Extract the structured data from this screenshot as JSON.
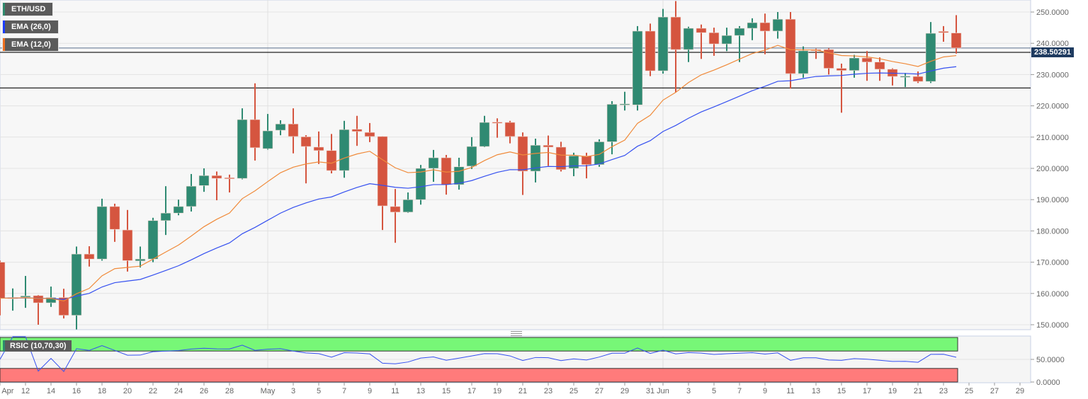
{
  "legend": {
    "symbol": "ETH/USD",
    "ema_slow": "EMA (26,0)",
    "ema_fast": "EMA (12,0)",
    "rsi": "RSIC (10,70,30)"
  },
  "colors": {
    "up": "#2f8a72",
    "down": "#d5553f",
    "ema_slow": "#3550f0",
    "ema_fast": "#f08a3a",
    "rsi_line": "#3550f0",
    "overbought_band": "#77f777",
    "oversold_band": "#ff7b7b",
    "price_tag": "#1f3b60"
  },
  "last_price_label": "238.50291",
  "chart_data": {
    "type": "candlestick",
    "candle_fields": [
      "date",
      "open",
      "high",
      "low",
      "close"
    ],
    "candles": [
      [
        "Apr 10",
        170,
        170.5,
        153,
        158.5
      ],
      [
        "Apr 11",
        158.3,
        161.6,
        154.5,
        158.7
      ],
      [
        "Apr 12",
        158.8,
        165.6,
        155.4,
        159.2
      ],
      [
        "Apr 13",
        159.3,
        159.5,
        150,
        157
      ],
      [
        "Apr 14",
        157,
        162.2,
        155.7,
        158.7
      ],
      [
        "Apr 15",
        158.7,
        161.5,
        152,
        153
      ],
      [
        "Apr 16",
        153,
        175,
        148.5,
        172.6
      ],
      [
        "Apr 17",
        172.6,
        175.1,
        168.6,
        171
      ],
      [
        "Apr 18",
        171,
        190.3,
        170.5,
        187.8
      ],
      [
        "Apr 19",
        187.8,
        188.7,
        176.5,
        180.5
      ],
      [
        "Apr 20",
        180.3,
        186.7,
        167,
        170.5
      ],
      [
        "Apr 21",
        170.4,
        175,
        168.3,
        171
      ],
      [
        "Apr 22",
        171,
        184.2,
        170,
        183.3
      ],
      [
        "Apr 23",
        183.3,
        194.3,
        178.7,
        185.7
      ],
      [
        "Apr 24",
        185.7,
        190,
        185,
        187.8
      ],
      [
        "Apr 25",
        187.8,
        198.2,
        186.2,
        194.3
      ],
      [
        "Apr 26",
        194.5,
        200,
        192.5,
        197.7
      ],
      [
        "Apr 27",
        197.7,
        199,
        189.8,
        196.8
      ],
      [
        "Apr 28",
        197,
        198,
        192.3,
        196.7
      ],
      [
        "Apr 29",
        196.8,
        219.2,
        196.5,
        215.6
      ],
      [
        "Apr 30",
        215.6,
        227.2,
        202.5,
        206.6
      ],
      [
        "May 1",
        206.3,
        217.4,
        206,
        212
      ],
      [
        "May 2",
        212.2,
        215.4,
        210.6,
        214.2
      ],
      [
        "May 3",
        214.2,
        219.2,
        204.8,
        210.2
      ],
      [
        "May 4",
        210.1,
        210.6,
        195.2,
        207
      ],
      [
        "May 5",
        206.8,
        211.8,
        201.4,
        205.7
      ],
      [
        "May 6",
        205.7,
        211,
        198.4,
        199.3
      ],
      [
        "May 7",
        199.3,
        215.2,
        197,
        212.4
      ],
      [
        "May 8",
        212.5,
        216.8,
        207.2,
        211.8
      ],
      [
        "May 9",
        211.5,
        214.5,
        208.4,
        210.2
      ],
      [
        "May 10",
        210.2,
        210.3,
        180.3,
        188
      ],
      [
        "May 11",
        187.8,
        193.4,
        176.2,
        186
      ],
      [
        "May 12",
        186,
        192.3,
        185.8,
        190
      ],
      [
        "May 13",
        190,
        201.1,
        188.4,
        200
      ],
      [
        "May 14",
        200,
        205.9,
        195.7,
        203.4
      ],
      [
        "May 15",
        203.4,
        204.3,
        191.6,
        194.8
      ],
      [
        "May 16",
        194.8,
        203.4,
        193.2,
        200.5
      ],
      [
        "May 17",
        200.7,
        210,
        199.8,
        207
      ],
      [
        "May 18",
        207,
        216.8,
        206.8,
        214.7
      ],
      [
        "May 19",
        214.8,
        216,
        209.8,
        214.5
      ],
      [
        "May 20",
        214.7,
        215.2,
        208,
        210.2
      ],
      [
        "May 21",
        210.2,
        211.5,
        191.5,
        199.1
      ],
      [
        "May 22",
        199.1,
        209.5,
        195.5,
        207.4
      ],
      [
        "May 23",
        207.4,
        210.5,
        200.8,
        206.8
      ],
      [
        "May 24",
        206.8,
        208.5,
        199,
        199.6
      ],
      [
        "May 25",
        200,
        205,
        197.5,
        204
      ],
      [
        "May 26",
        204,
        205,
        196.8,
        201.2
      ],
      [
        "May 27",
        201.2,
        209.3,
        200.5,
        208.5
      ],
      [
        "May 28",
        208.5,
        221.5,
        204.5,
        220.5
      ],
      [
        "May 29",
        220.3,
        224.5,
        218.5,
        220.6
      ],
      [
        "May 30",
        220.3,
        245.5,
        218.5,
        243.9
      ],
      [
        "May 31",
        243.9,
        246.3,
        229.5,
        231.2
      ],
      [
        "Jun 1",
        231.2,
        251,
        230.3,
        248.4
      ],
      [
        "Jun 2",
        248.4,
        253.5,
        224.3,
        238
      ],
      [
        "Jun 3",
        238,
        245.3,
        234,
        244.8
      ],
      [
        "Jun 4",
        244.8,
        246,
        235,
        243.4
      ],
      [
        "Jun 5",
        243.4,
        245,
        236,
        239.8
      ],
      [
        "Jun 6",
        239.8,
        245,
        237.5,
        242.5
      ],
      [
        "Jun 7",
        242.5,
        245.5,
        234,
        244.8
      ],
      [
        "Jun 8",
        244.8,
        248,
        241,
        246.6
      ],
      [
        "Jun 9",
        246.6,
        249.5,
        236.5,
        243.9
      ],
      [
        "Jun 10",
        243.9,
        250,
        241.5,
        247.7
      ],
      [
        "Jun 11",
        247.7,
        250,
        225.5,
        230.3
      ],
      [
        "Jun 12",
        230.3,
        239,
        229,
        237.6
      ],
      [
        "Jun 13",
        238,
        238.3,
        235,
        237.6
      ],
      [
        "Jun 14",
        238,
        238.4,
        230,
        232
      ],
      [
        "Jun 15",
        232,
        233.5,
        217.8,
        231.3
      ],
      [
        "Jun 16",
        231.3,
        236.3,
        229,
        235.3
      ],
      [
        "Jun 17",
        235.3,
        237.5,
        228,
        234
      ],
      [
        "Jun 18",
        234,
        235.5,
        228,
        231.7
      ],
      [
        "Jun 19",
        231.7,
        232,
        226.5,
        229.4
      ],
      [
        "Jun 20",
        229.3,
        230.5,
        226,
        229.5
      ],
      [
        "Jun 21",
        229.4,
        231,
        227.3,
        227.8
      ],
      [
        "Jun 22",
        227.8,
        246.8,
        227.3,
        243.2
      ],
      [
        "Jun 23",
        243.8,
        245.5,
        240.5,
        243.4
      ],
      [
        "Jun 24",
        243.3,
        249,
        236.7,
        238.5
      ]
    ],
    "indicators": [
      {
        "name": "EMA (26,0)",
        "type": "ema",
        "period": 26
      },
      {
        "name": "EMA (12,0)",
        "type": "ema",
        "period": 12
      }
    ],
    "horizontal_lines": [
      238.50291,
      237.1,
      225.7
    ],
    "y_axis": {
      "range": [
        147,
        254
      ],
      "ticks": [
        "150.0000",
        "160.0000",
        "170.0000",
        "180.0000",
        "190.0000",
        "200.0000",
        "210.0000",
        "220.0000",
        "230.0000",
        "240.0000",
        "250.0000"
      ]
    },
    "x_axis": {
      "range": [
        "Apr 10",
        "Jun 29"
      ],
      "ticks": [
        {
          "date": "Apr 10",
          "label": "Apr"
        },
        {
          "date": "Apr 12",
          "label": "12"
        },
        {
          "date": "Apr 14",
          "label": "14"
        },
        {
          "date": "Apr 16",
          "label": "16"
        },
        {
          "date": "Apr 18",
          "label": "18"
        },
        {
          "date": "Apr 20",
          "label": "20"
        },
        {
          "date": "Apr 22",
          "label": "22"
        },
        {
          "date": "Apr 24",
          "label": "24"
        },
        {
          "date": "Apr 26",
          "label": "26"
        },
        {
          "date": "Apr 28",
          "label": "28"
        },
        {
          "date": "May 1",
          "label": "May"
        },
        {
          "date": "May 3",
          "label": "3"
        },
        {
          "date": "May 5",
          "label": "5"
        },
        {
          "date": "May 7",
          "label": "7"
        },
        {
          "date": "May 9",
          "label": "9"
        },
        {
          "date": "May 11",
          "label": "11"
        },
        {
          "date": "May 13",
          "label": "13"
        },
        {
          "date": "May 15",
          "label": "15"
        },
        {
          "date": "May 17",
          "label": "17"
        },
        {
          "date": "May 19",
          "label": "19"
        },
        {
          "date": "May 21",
          "label": "21"
        },
        {
          "date": "May 23",
          "label": "23"
        },
        {
          "date": "May 25",
          "label": "25"
        },
        {
          "date": "May 27",
          "label": "27"
        },
        {
          "date": "May 29",
          "label": "29"
        },
        {
          "date": "May 31",
          "label": "31"
        },
        {
          "date": "Jun 1",
          "label": "Jun"
        },
        {
          "date": "Jun 3",
          "label": "3"
        },
        {
          "date": "Jun 5",
          "label": "5"
        },
        {
          "date": "Jun 7",
          "label": "7"
        },
        {
          "date": "Jun 9",
          "label": "9"
        },
        {
          "date": "Jun 11",
          "label": "11"
        },
        {
          "date": "Jun 13",
          "label": "13"
        },
        {
          "date": "Jun 15",
          "label": "15"
        },
        {
          "date": "Jun 17",
          "label": "17"
        },
        {
          "date": "Jun 19",
          "label": "19"
        },
        {
          "date": "Jun 21",
          "label": "21"
        },
        {
          "date": "Jun 23",
          "label": "23"
        },
        {
          "date": "Jun 25",
          "label": "25"
        },
        {
          "date": "Jun 27",
          "label": "27"
        },
        {
          "date": "Jun 29",
          "label": "29"
        }
      ]
    },
    "rsi": {
      "period": 10,
      "overbought": 70,
      "oversold": 30,
      "range": [
        0,
        100
      ],
      "ticks": [
        "0.0000",
        "50.0000"
      ]
    },
    "grid": true
  }
}
